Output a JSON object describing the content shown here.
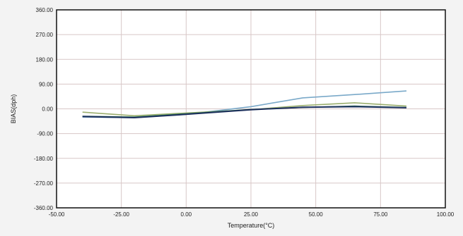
{
  "chart_data": {
    "type": "line",
    "title": "",
    "xlabel": "Temperature(°C)",
    "ylabel": "BIAS(dph)",
    "xlim": [
      -50,
      100
    ],
    "ylim": [
      -360,
      360
    ],
    "grid": true,
    "x_ticks": [
      {
        "value": -50,
        "label": "-50.00"
      },
      {
        "value": -25,
        "label": "-25.00"
      },
      {
        "value": 0,
        "label": "0.00"
      },
      {
        "value": 25,
        "label": "25.00"
      },
      {
        "value": 50,
        "label": "50.00"
      },
      {
        "value": 75,
        "label": "75.00"
      },
      {
        "value": 100,
        "label": "100.00"
      }
    ],
    "y_ticks": [
      {
        "value": 360,
        "label": "360.00"
      },
      {
        "value": 270,
        "label": "270.00"
      },
      {
        "value": 180,
        "label": "180.00"
      },
      {
        "value": 90,
        "label": "90.00"
      },
      {
        "value": 0,
        "label": "0.00"
      },
      {
        "value": -90,
        "label": "-90.00"
      },
      {
        "value": -180,
        "label": "-180.00"
      },
      {
        "value": -270,
        "label": "-270.00"
      },
      {
        "value": -360,
        "label": "-360.00"
      }
    ],
    "series": [
      {
        "color": "#7aa9c9",
        "x": [
          -40,
          -20,
          0,
          25,
          45,
          65,
          85
        ],
        "y": [
          -30,
          -32,
          -20,
          8,
          40,
          52,
          65
        ]
      },
      {
        "color": "#9aae6e",
        "x": [
          -40,
          -20,
          0,
          25,
          45,
          65,
          85
        ],
        "y": [
          -12,
          -25,
          -15,
          -3,
          12,
          22,
          10
        ]
      },
      {
        "color": "#2f7a58",
        "x": [
          -40,
          -20,
          0,
          25,
          45,
          65,
          85
        ],
        "y": [
          -27,
          -30,
          -18,
          -2,
          5,
          10,
          5
        ]
      },
      {
        "color": "#1c2f5c",
        "x": [
          -40,
          -20,
          0,
          25,
          45,
          65,
          85
        ],
        "y": [
          -28,
          -32,
          -20,
          -3,
          6,
          8,
          4
        ]
      }
    ]
  }
}
